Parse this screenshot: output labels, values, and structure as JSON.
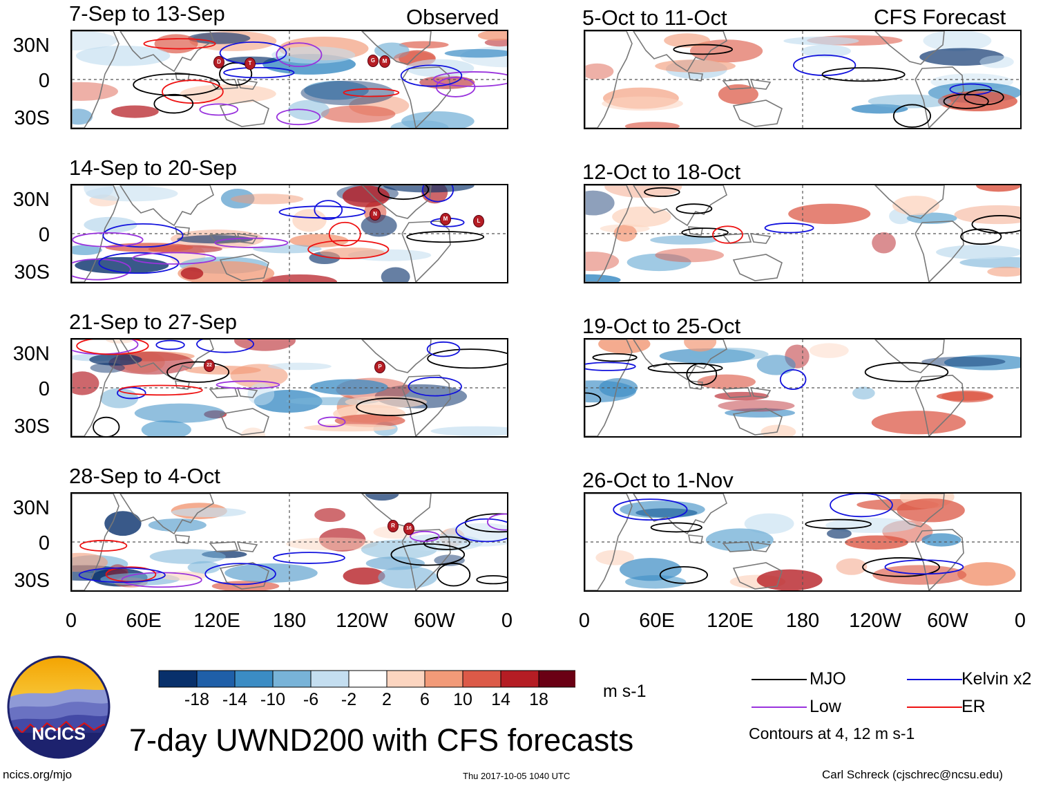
{
  "figure": {
    "title": "7-day UWND200 with CFS forecasts",
    "observed_label": "Observed",
    "forecast_label": "CFS Forecast",
    "units": "m s-1",
    "contour_note": "Contours at 4, 12 m s-1",
    "source_url": "ncics.org/mjo",
    "timestamp": "Thu 2017-10-05 1040 UTC",
    "author": "Carl Schreck (cjschrec@ncsu.edu)",
    "logo_text": "NCICS"
  },
  "panels": {
    "observed": [
      {
        "period": "7-Sep to 13-Sep",
        "storms": [
          "D",
          "T",
          "G",
          "M"
        ]
      },
      {
        "period": "14-Sep to 20-Sep",
        "storms": [
          "N",
          "M",
          "L"
        ]
      },
      {
        "period": "21-Sep to 27-Sep",
        "storms": [
          "22",
          "P"
        ]
      },
      {
        "period": "28-Sep to 4-Oct",
        "storms": [
          "R",
          "16"
        ]
      }
    ],
    "forecast": [
      {
        "period": "5-Oct to 11-Oct"
      },
      {
        "period": "12-Oct to 18-Oct"
      },
      {
        "period": "19-Oct to 25-Oct"
      },
      {
        "period": "26-Oct to 1-Nov"
      }
    ]
  },
  "axes": {
    "lat_ticks": [
      "30N",
      "0",
      "30S"
    ],
    "lon_ticks": [
      "0",
      "60E",
      "120E",
      "180",
      "120W",
      "60W",
      "0"
    ]
  },
  "colorbar": {
    "tick_labels": [
      "-18",
      "-14",
      "-10",
      "-6",
      "-2",
      "2",
      "6",
      "10",
      "14",
      "18"
    ],
    "colors": [
      "#08306b",
      "#1f5fa8",
      "#3b8cc4",
      "#78b3d8",
      "#c4def0",
      "#ffffff",
      "#fcd5c0",
      "#f29a78",
      "#dc5a48",
      "#b51d24",
      "#6a0014"
    ]
  },
  "legend": {
    "items": [
      {
        "label": "MJO",
        "color": "#000000"
      },
      {
        "label": "Kelvin x2",
        "color": "#1111dd"
      },
      {
        "label": "Low",
        "color": "#9933dd"
      },
      {
        "label": "ER",
        "color": "#ee1111"
      }
    ]
  }
}
